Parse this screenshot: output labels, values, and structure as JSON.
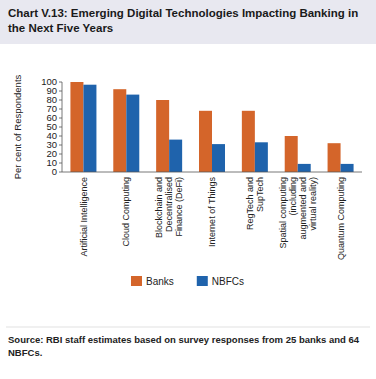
{
  "chart_data": {
    "type": "bar",
    "title": "Chart V.13: Emerging Digital Technologies Impacting Banking in the Next Five Years",
    "y_label": "Per cent of Respondents",
    "categories": [
      "Artificial Intelligence",
      "Cloud Computing",
      "Blockchain and Decentralised Finance (DeFi)",
      "Internet of Things",
      "RegTech and SupTech",
      "Spatial computing (including augmented and virtual reality)",
      "Quantum Computing"
    ],
    "series": [
      {
        "name": "Banks",
        "color": "#d4652a",
        "values": [
          100,
          92,
          80,
          68,
          68,
          40,
          32
        ]
      },
      {
        "name": "NBFCs",
        "color": "#1f63ac",
        "values": [
          97,
          86,
          36,
          31,
          33,
          9,
          9
        ]
      }
    ],
    "ylim": [
      0,
      100
    ],
    "yticks": [
      0,
      10,
      20,
      30,
      40,
      50,
      60,
      70,
      80,
      90,
      100
    ],
    "grid": false,
    "legend": "bottom",
    "source": "Source: RBI staff estimates based on survey responses from 25 banks and 64 NBFCs."
  }
}
